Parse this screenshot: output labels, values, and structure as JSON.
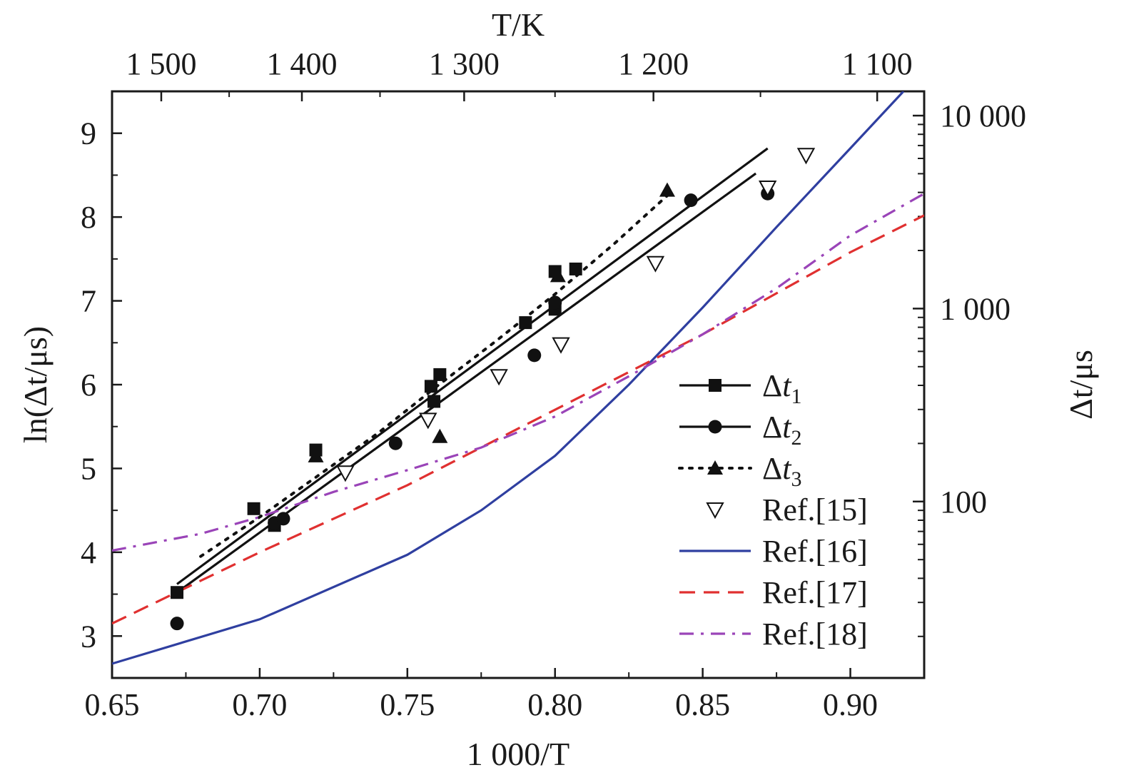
{
  "chart_data": {
    "type": "scatter",
    "title": "",
    "xlabel": "1 000/T",
    "ylabel": "ln(Δt/μs)",
    "top_xlabel": "T/K",
    "right_ylabel": "Δt/μs",
    "xlim": [
      0.65,
      0.925
    ],
    "ylim": [
      2.5,
      9.5
    ],
    "x_ticks": [
      0.65,
      0.7,
      0.75,
      0.8,
      0.85,
      0.9
    ],
    "x_tick_labels": [
      "0.65",
      "0.70",
      "0.75",
      "0.80",
      "0.85",
      "0.90"
    ],
    "y_ticks": [
      3,
      4,
      5,
      6,
      7,
      8,
      9
    ],
    "y_tick_labels": [
      "3",
      "4",
      "5",
      "6",
      "7",
      "8",
      "9"
    ],
    "top_ticks": [
      {
        "value": 1500,
        "label": "1 500"
      },
      {
        "value": 1400,
        "label": "1 400"
      },
      {
        "value": 1300,
        "label": "1 300"
      },
      {
        "value": 1200,
        "label": "1 200"
      },
      {
        "value": 1100,
        "label": "1 100"
      }
    ],
    "right_ticks": [
      {
        "value": 100,
        "label": "100"
      },
      {
        "value": 1000,
        "label": "1 000"
      },
      {
        "value": 10000,
        "label": "10 000"
      }
    ],
    "right_scale": "log",
    "grid": false,
    "legend_position": "bottom-right",
    "series": [
      {
        "name": "Δt",
        "sub": "1",
        "marker": "square",
        "line": "solid",
        "color": "#111111",
        "points": [
          [
            0.672,
            3.52
          ],
          [
            0.698,
            4.52
          ],
          [
            0.705,
            4.32
          ],
          [
            0.719,
            5.22
          ],
          [
            0.758,
            5.98
          ],
          [
            0.759,
            5.8
          ],
          [
            0.761,
            6.12
          ],
          [
            0.79,
            6.74
          ],
          [
            0.8,
            7.35
          ],
          [
            0.8,
            6.9
          ],
          [
            0.807,
            7.38
          ]
        ],
        "fit": [
          [
            0.672,
            3.62
          ],
          [
            0.872,
            8.82
          ]
        ]
      },
      {
        "name": "Δt",
        "sub": "2",
        "marker": "circle",
        "line": "solid",
        "color": "#111111",
        "points": [
          [
            0.672,
            3.15
          ],
          [
            0.705,
            4.35
          ],
          [
            0.708,
            4.4
          ],
          [
            0.746,
            5.3
          ],
          [
            0.793,
            6.35
          ],
          [
            0.8,
            6.98
          ],
          [
            0.846,
            8.2
          ],
          [
            0.872,
            8.28
          ]
        ],
        "fit": [
          [
            0.672,
            3.52
          ],
          [
            0.868,
            8.52
          ]
        ]
      },
      {
        "name": "Δt",
        "sub": "3",
        "marker": "triangle",
        "line": "dotted",
        "color": "#111111",
        "points": [
          [
            0.719,
            5.15
          ],
          [
            0.761,
            5.38
          ],
          [
            0.801,
            7.3
          ],
          [
            0.838,
            8.32
          ]
        ],
        "fit": [
          [
            0.68,
            3.95
          ],
          [
            0.7,
            4.42
          ],
          [
            0.72,
            4.92
          ],
          [
            0.74,
            5.42
          ],
          [
            0.76,
            5.98
          ],
          [
            0.78,
            6.52
          ],
          [
            0.8,
            7.08
          ],
          [
            0.82,
            7.68
          ],
          [
            0.84,
            8.32
          ]
        ]
      },
      {
        "name": "Ref.[15]",
        "marker": "triangle-down-open",
        "line": "none",
        "color": "#111111",
        "points": [
          [
            0.729,
            4.95
          ],
          [
            0.757,
            5.58
          ],
          [
            0.781,
            6.1
          ],
          [
            0.802,
            6.48
          ],
          [
            0.834,
            7.45
          ],
          [
            0.872,
            8.35
          ],
          [
            0.885,
            8.74
          ]
        ]
      },
      {
        "name": "Ref.[16]",
        "marker": "none",
        "line": "solid",
        "color": "#2f3fa0",
        "points": [
          [
            0.65,
            2.67
          ],
          [
            0.7,
            3.2
          ],
          [
            0.75,
            3.97
          ],
          [
            0.775,
            4.5
          ],
          [
            0.8,
            5.15
          ],
          [
            0.825,
            6.0
          ],
          [
            0.85,
            6.92
          ],
          [
            0.875,
            7.88
          ],
          [
            0.9,
            8.82
          ],
          [
            0.918,
            9.5
          ]
        ]
      },
      {
        "name": "Ref.[17]",
        "marker": "none",
        "line": "dashed",
        "color": "#e03030",
        "points": [
          [
            0.65,
            3.15
          ],
          [
            0.7,
            4.0
          ],
          [
            0.75,
            4.8
          ],
          [
            0.8,
            5.7
          ],
          [
            0.85,
            6.6
          ],
          [
            0.9,
            7.58
          ],
          [
            0.925,
            8.02
          ]
        ]
      },
      {
        "name": "Ref.[18]",
        "marker": "none",
        "line": "dashdot",
        "color": "#9a44b8",
        "points": [
          [
            0.65,
            4.02
          ],
          [
            0.68,
            4.22
          ],
          [
            0.7,
            4.42
          ],
          [
            0.725,
            4.72
          ],
          [
            0.75,
            4.98
          ],
          [
            0.775,
            5.25
          ],
          [
            0.8,
            5.62
          ],
          [
            0.825,
            6.1
          ],
          [
            0.85,
            6.6
          ],
          [
            0.875,
            7.15
          ],
          [
            0.9,
            7.78
          ],
          [
            0.925,
            8.28
          ]
        ]
      }
    ]
  }
}
